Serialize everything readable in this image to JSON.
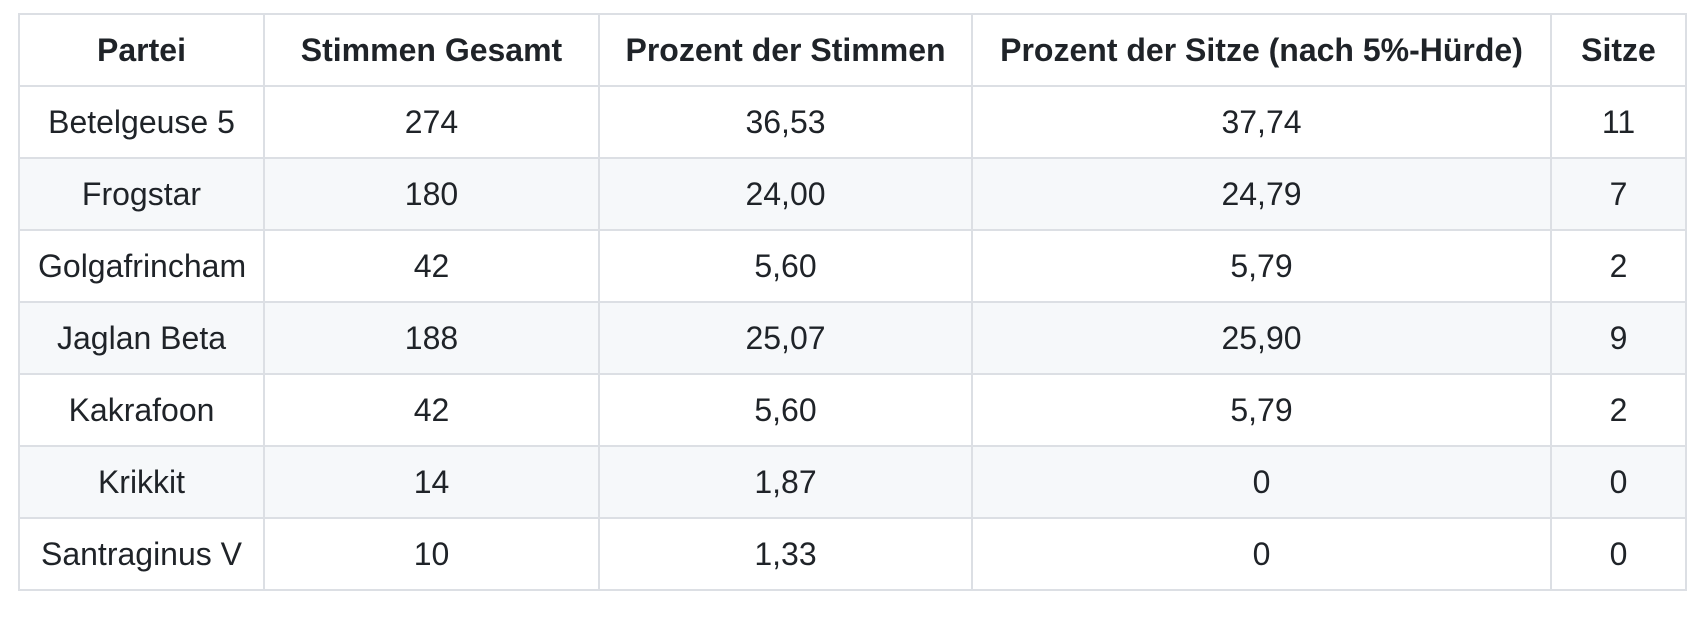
{
  "table": {
    "columns": [
      "Partei",
      "Stimmen Gesamt",
      "Prozent der Stimmen",
      "Prozent der Sitze (nach 5%-Hürde)",
      "Sitze"
    ],
    "rows": [
      {
        "cells": [
          "Betelgeuse 5",
          "274",
          "36,53",
          "37,74",
          "11"
        ]
      },
      {
        "cells": [
          "Frogstar",
          "180",
          "24,00",
          "24,79",
          "7"
        ]
      },
      {
        "cells": [
          "Golgafrincham",
          "42",
          "5,60",
          "5,79",
          "2"
        ]
      },
      {
        "cells": [
          "Jaglan Beta",
          "188",
          "25,07",
          "25,90",
          "9"
        ]
      },
      {
        "cells": [
          "Kakrafoon",
          "42",
          "5,60",
          "5,79",
          "2"
        ]
      },
      {
        "cells": [
          "Krikkit",
          "14",
          "1,87",
          "0",
          "0"
        ]
      },
      {
        "cells": [
          "Santraginus V",
          "10",
          "1,33",
          "0",
          "0"
        ]
      }
    ]
  },
  "chart_data": {
    "type": "table",
    "title": "",
    "columns": [
      "Partei",
      "Stimmen Gesamt",
      "Prozent der Stimmen",
      "Prozent der Sitze (nach 5%-Hürde)",
      "Sitze"
    ],
    "rows": [
      [
        "Betelgeuse 5",
        274,
        36.53,
        37.74,
        11
      ],
      [
        "Frogstar",
        180,
        24.0,
        24.79,
        7
      ],
      [
        "Golgafrincham",
        42,
        5.6,
        5.79,
        2
      ],
      [
        "Jaglan Beta",
        188,
        25.07,
        25.9,
        9
      ],
      [
        "Kakrafoon",
        42,
        5.6,
        5.79,
        2
      ],
      [
        "Krikkit",
        14,
        1.87,
        0,
        0
      ],
      [
        "Santraginus V",
        10,
        1.33,
        0,
        0
      ]
    ],
    "decimal_separator": ",",
    "layout_hints": "striped rows, all cells center-aligned, bold header row"
  },
  "colors": {
    "background": "#ffffff",
    "row_stripe": "#f6f8fa",
    "border": "#dcdfe4",
    "text": "#1f2328"
  }
}
